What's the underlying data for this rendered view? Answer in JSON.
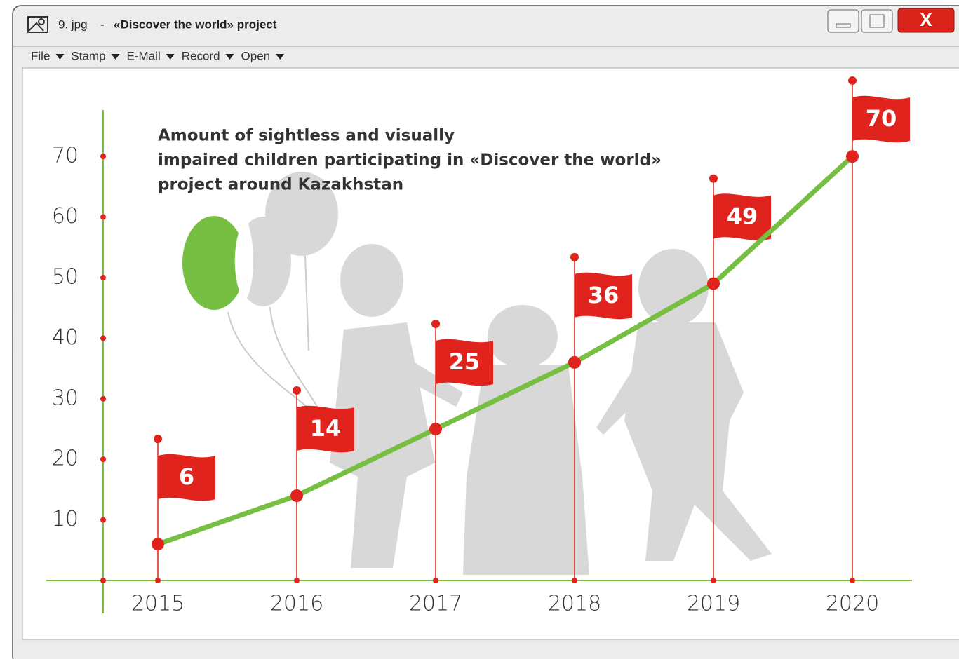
{
  "window": {
    "file_name": "9. jpg",
    "separator": "-",
    "title": "«Discover the world» project",
    "close": "X",
    "menu": [
      "File",
      "Stamp",
      "E-Mail",
      "Record",
      "Open"
    ]
  },
  "chart_data": {
    "type": "line",
    "title": [
      "Amount of sightless and visually",
      "impaired children participating in «Discover the world»",
      "project around Kazakhstan"
    ],
    "categories": [
      "2015",
      "2016",
      "2017",
      "2018",
      "2019",
      "2020"
    ],
    "values": [
      6,
      14,
      25,
      36,
      49,
      70
    ],
    "color": "#76bf43",
    "flag_color": "#e0231c",
    "ylim": [
      0,
      78
    ],
    "yticks": [
      10,
      20,
      30,
      40,
      50,
      60,
      70
    ]
  }
}
